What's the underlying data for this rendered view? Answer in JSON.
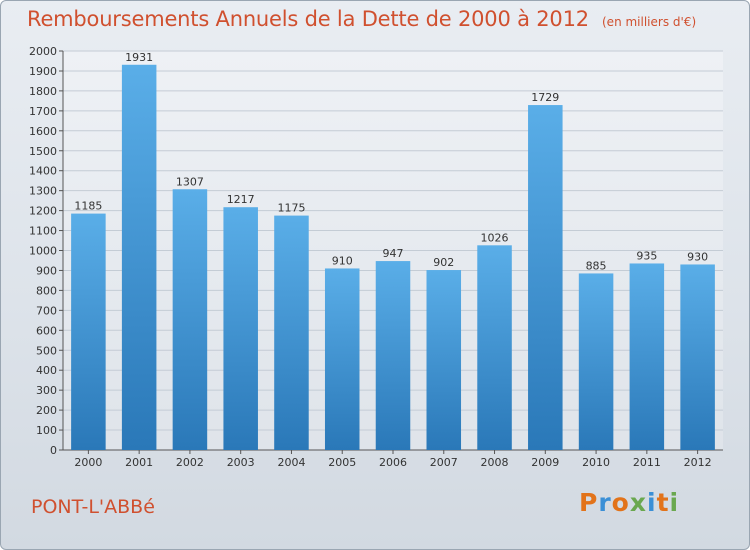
{
  "page": {
    "title": "Remboursements Annuels de la Dette de 2000 à 2012",
    "unit": "(en milliers d'€)",
    "city": "PONT-L'ABBé",
    "logo_text": "Proxiti",
    "logo_colors": [
      "#e2731a",
      "#3a8fd6",
      "#e2731a",
      "#6aa84f",
      "#3a8fd6",
      "#e2731a",
      "#6aa84f"
    ]
  },
  "chart_data": {
    "type": "bar",
    "title": "Remboursements Annuels de la Dette de 2000 à 2012",
    "subtitle": "(en milliers d'€)",
    "categories": [
      "2000",
      "2001",
      "2002",
      "2003",
      "2004",
      "2005",
      "2006",
      "2007",
      "2008",
      "2009",
      "2010",
      "2011",
      "2012"
    ],
    "values": [
      1185,
      1931,
      1307,
      1217,
      1175,
      910,
      947,
      902,
      1026,
      1729,
      885,
      935,
      930
    ],
    "ylim": [
      0,
      2000
    ],
    "yticks": [
      0,
      100,
      200,
      300,
      400,
      500,
      600,
      700,
      800,
      900,
      1000,
      1100,
      1200,
      1300,
      1400,
      1500,
      1600,
      1700,
      1800,
      1900,
      2000
    ],
    "grid": true,
    "bar_color": "#3d97da",
    "text_color": "#d0502f"
  }
}
